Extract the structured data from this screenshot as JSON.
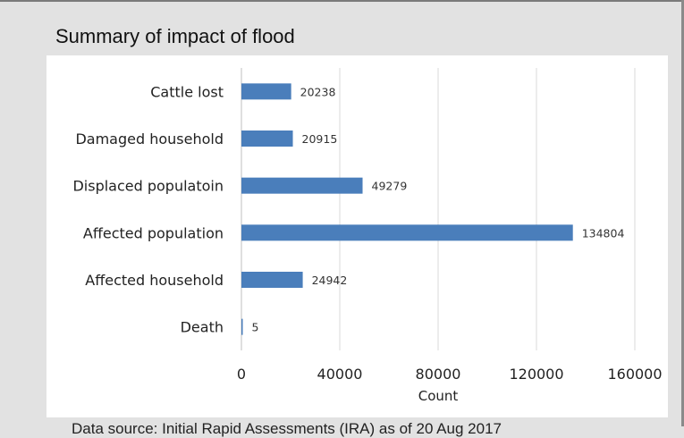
{
  "title": "Summary of impact of flood",
  "footnote": "Data source: Initial Rapid Assessments (IRA) as of 20 Aug 2017",
  "chart_data": {
    "type": "bar",
    "orientation": "horizontal",
    "categories": [
      "Cattle lost",
      "Damaged household",
      "Displaced populatoin",
      "Affected population",
      "Affected household",
      "Death"
    ],
    "values": [
      20238,
      20915,
      49279,
      134804,
      24942,
      5
    ],
    "data_labels": [
      "20238",
      "20915",
      "49279",
      "134804",
      "24942",
      "5"
    ],
    "xlabel": "Count",
    "ylabel": "",
    "xlim": [
      0,
      160000
    ],
    "xticks": [
      0,
      40000,
      80000,
      120000,
      160000
    ],
    "xtick_labels": [
      "0",
      "40000",
      "80000",
      "120000",
      "160000"
    ],
    "bar_color": "#4a7ebb",
    "grid": "vertical"
  }
}
